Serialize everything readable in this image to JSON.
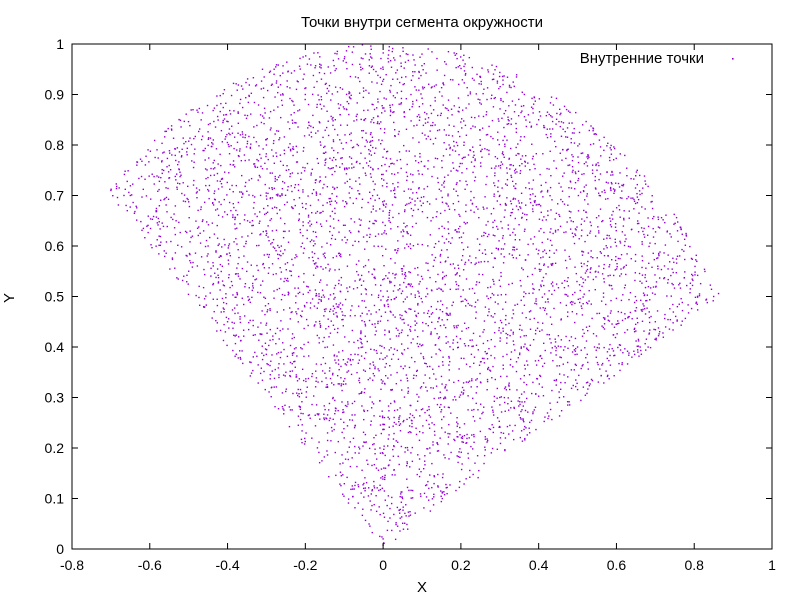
{
  "chart_data": {
    "type": "scatter",
    "title": "Точки внутри сегмента окружности",
    "xlabel": "X",
    "ylabel": "Y",
    "xlim": [
      -0.8,
      1
    ],
    "ylim": [
      0,
      1
    ],
    "x_ticks": [
      "-0.8",
      "-0.6",
      "-0.4",
      "-0.2",
      "0",
      "0.2",
      "0.4",
      "0.6",
      "0.8",
      "1"
    ],
    "y_ticks": [
      "0",
      "0.1",
      "0.2",
      "0.3",
      "0.4",
      "0.5",
      "0.6",
      "0.7",
      "0.8",
      "0.9",
      "1"
    ],
    "grid": false,
    "legend_position": "top-right",
    "series": [
      {
        "name": "Внутренние точки",
        "color": "#9400d3",
        "marker": "dot",
        "region": {
          "shape": "circular sector",
          "center": [
            0,
            0
          ],
          "radius": 1,
          "angle_start_deg": 30,
          "angle_end_deg": 135
        },
        "point_count": 5000,
        "values": [
          [
            0.0,
            0.02
          ],
          [
            0.05,
            0.1
          ],
          [
            -0.05,
            0.12
          ],
          [
            0.12,
            0.2
          ],
          [
            -0.1,
            0.22
          ],
          [
            0.3,
            0.3
          ],
          [
            -0.25,
            0.35
          ],
          [
            0.5,
            0.4
          ],
          [
            -0.4,
            0.45
          ],
          [
            0.7,
            0.45
          ],
          [
            0.85,
            0.5
          ],
          [
            0.2,
            0.5
          ],
          [
            -0.5,
            0.55
          ],
          [
            0.6,
            0.6
          ],
          [
            -0.65,
            0.7
          ],
          [
            0.3,
            0.7
          ],
          [
            -0.3,
            0.8
          ],
          [
            0.4,
            0.85
          ],
          [
            0.0,
            0.95
          ],
          [
            -0.2,
            0.9
          ],
          [
            -0.7,
            0.71
          ],
          [
            0.1,
            0.98
          ],
          [
            0.55,
            0.75
          ],
          [
            -0.45,
            0.6
          ],
          [
            0.0,
            0.5
          ]
        ]
      }
    ]
  }
}
